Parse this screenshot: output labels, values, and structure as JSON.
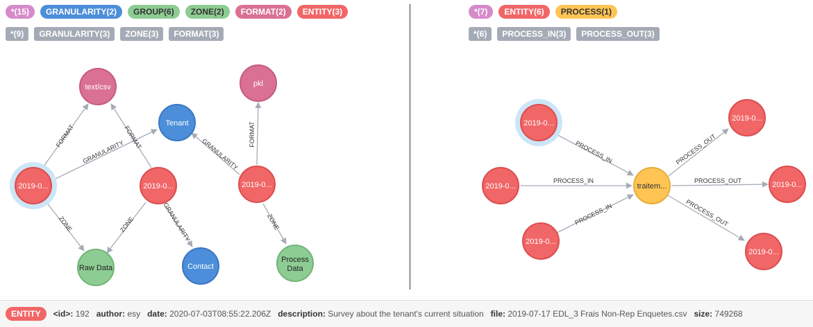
{
  "colors": {
    "pink": "#d68bc9",
    "blue": "#4c8eda",
    "green": "#8dcc93",
    "magenta": "#da7194",
    "red": "#f16667",
    "yellow": "#ffc454",
    "gray": "#a5abb6"
  },
  "left": {
    "node_labels": [
      {
        "label": "*(15)",
        "color": "#d68bc9"
      },
      {
        "label": "GRANULARITY(2)",
        "color": "#4c8eda"
      },
      {
        "label": "GROUP(6)",
        "color": "#8dcc93",
        "dark": true
      },
      {
        "label": "ZONE(2)",
        "color": "#8dcc93",
        "dark": true
      },
      {
        "label": "FORMAT(2)",
        "color": "#da7194"
      },
      {
        "label": "ENTITY(3)",
        "color": "#f16667"
      }
    ],
    "rel_types": [
      "*(9)",
      "GRANULARITY(3)",
      "ZONE(3)",
      "FORMAT(3)"
    ],
    "nodes": {
      "textcsv": "text/csv",
      "pkl": "pkl",
      "tenant": "Tenant",
      "e1": "2019-0...",
      "e2": "2019-0...",
      "e3": "2019-0...",
      "raw": "Raw Data",
      "contact": "Contact",
      "process_1": "Process",
      "process_2": "Data"
    },
    "edges": {
      "format1": "FORMAT",
      "format2": "FORMAT",
      "format3": "FORMAT",
      "gran1": "GRANULARITY",
      "gran2": "GRANULARITY",
      "gran3": "GRANULARITY",
      "zone1": "ZONE",
      "zone2": "ZONE",
      "zone3": "ZONE"
    }
  },
  "right": {
    "node_labels": [
      {
        "label": "*(7)",
        "color": "#d68bc9"
      },
      {
        "label": "ENTITY(6)",
        "color": "#f16667"
      },
      {
        "label": "PROCESS(1)",
        "color": "#ffc454",
        "dark": true
      }
    ],
    "rel_types": [
      "*(6)",
      "PROCESS_IN(3)",
      "PROCESS_OUT(3)"
    ],
    "nodes": {
      "in1": "2019-0...",
      "in2": "2019-0...",
      "in3": "2019-0...",
      "proc": "traitem...",
      "out1": "2019-0...",
      "out2": "2019-0...",
      "out3": "2019-0..."
    },
    "edges": {
      "pin1": "PROCESS_IN",
      "pin2": "PROCESS_IN",
      "pin3": "PROCESS_IN",
      "pout1": "PROCESS_OUT",
      "pout2": "PROCESS_OUT",
      "pout3": "PROCESS_OUT"
    }
  },
  "footer": {
    "badge": "ENTITY",
    "id_key": "<id>:",
    "id_val": "192",
    "author_key": "author:",
    "author_val": "esy",
    "date_key": "date:",
    "date_val": "2020-07-03T08:55:22.206Z",
    "desc_key": "description:",
    "desc_val": "Survey about the tenant's current situation",
    "file_key": "file:",
    "file_val": "2019-07-17 EDL_3 Frais Non-Rep Enquetes.csv",
    "size_key": "size:",
    "size_val": "749268"
  }
}
